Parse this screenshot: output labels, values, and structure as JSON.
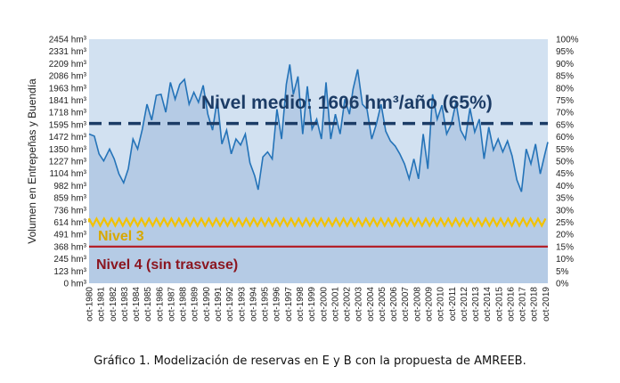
{
  "chart_data": {
    "type": "area",
    "ylabel": "Volumen en Entrepeñas y Buendía",
    "y_ticks_left": [
      "0 hm³",
      "123 hm³",
      "245 hm³",
      "368 hm³",
      "491 hm³",
      "614 hm³",
      "736 hm³",
      "859 hm³",
      "982 hm³",
      "1104 hm³",
      "1227 hm³",
      "1350 hm³",
      "1472 hm³",
      "1595 hm³",
      "1718 hm³",
      "1841 hm³",
      "1963 hm³",
      "2086 hm³",
      "2209 hm³",
      "2331 hm³",
      "2454 hm³"
    ],
    "y_ticks_right": [
      "0%",
      "5%",
      "10%",
      "15%",
      "20%",
      "25%",
      "30%",
      "35%",
      "40%",
      "45%",
      "50%",
      "55%",
      "60%",
      "65%",
      "70%",
      "75%",
      "80%",
      "85%",
      "90%",
      "95%",
      "100%"
    ],
    "ylim": [
      0,
      2454
    ],
    "x_ticks": [
      "oct-1980",
      "oct-1981",
      "oct-1982",
      "oct-1983",
      "oct-1984",
      "oct-1985",
      "oct-1986",
      "oct-1987",
      "oct-1988",
      "oct-1989",
      "oct-1990",
      "oct-1991",
      "oct-1992",
      "oct-1993",
      "oct-1994",
      "oct-1995",
      "oct-1996",
      "oct-1997",
      "oct-1998",
      "oct-1999",
      "oct-2000",
      "oct-2001",
      "oct-2002",
      "oct-2003",
      "oct-2004",
      "oct-2005",
      "oct-2006",
      "oct-2007",
      "oct-2008",
      "oct-2009",
      "oct-2010",
      "oct-2011",
      "oct-2012",
      "oct-2013",
      "oct-2014",
      "oct-2015",
      "oct-2016",
      "oct-2017",
      "oct-2018",
      "oct-2019"
    ],
    "series": [
      {
        "kind": "volume",
        "x": [
          1980.75,
          1981.2,
          1981.6,
          1982.0,
          1982.5,
          1982.9,
          1983.3,
          1983.7,
          1984.1,
          1984.5,
          1984.9,
          1985.3,
          1985.7,
          1986.1,
          1986.5,
          1986.9,
          1987.3,
          1987.7,
          1988.1,
          1988.5,
          1988.9,
          1989.3,
          1989.7,
          1990.1,
          1990.5,
          1990.9,
          1991.3,
          1991.7,
          1992.1,
          1992.5,
          1992.9,
          1993.3,
          1993.7,
          1994.1,
          1994.5,
          1994.9,
          1995.2,
          1995.6,
          1996.0,
          1996.4,
          1996.8,
          1997.2,
          1997.6,
          1997.9,
          1998.2,
          1998.6,
          1999.0,
          1999.4,
          1999.8,
          2000.2,
          2000.6,
          2001.0,
          2001.4,
          2001.8,
          2002.2,
          2002.6,
          2003.0,
          2003.3,
          2003.7,
          2004.1,
          2004.5,
          2004.9,
          2005.3,
          2005.7,
          2006.1,
          2006.5,
          2006.9,
          2007.3,
          2007.7,
          2008.1,
          2008.5,
          2008.9,
          2009.3,
          2009.7,
          2010.1,
          2010.5,
          2010.9,
          2011.3,
          2011.7,
          2012.1,
          2012.5,
          2012.9,
          2013.3,
          2013.7,
          2014.1,
          2014.5,
          2014.9,
          2015.3,
          2015.7,
          2016.1,
          2016.5,
          2016.9,
          2017.3,
          2017.7,
          2018.1,
          2018.5,
          2018.9,
          2019.3,
          2019.7,
          2019.95
        ],
        "y": [
          1500,
          1480,
          1300,
          1230,
          1350,
          1250,
          1100,
          1010,
          1150,
          1450,
          1350,
          1550,
          1800,
          1640,
          1890,
          1900,
          1720,
          2020,
          1850,
          2000,
          2050,
          1800,
          1920,
          1820,
          1990,
          1700,
          1540,
          1850,
          1400,
          1540,
          1300,
          1450,
          1390,
          1500,
          1210,
          1080,
          940,
          1270,
          1320,
          1250,
          1750,
          1450,
          2000,
          2200,
          1900,
          2080,
          1500,
          1980,
          1550,
          1650,
          1450,
          2020,
          1450,
          1700,
          1500,
          1850,
          1700,
          1950,
          2150,
          1800,
          1750,
          1450,
          1600,
          1800,
          1530,
          1430,
          1380,
          1300,
          1200,
          1050,
          1250,
          1050,
          1500,
          1150,
          1900,
          1650,
          1790,
          1500,
          1600,
          1820,
          1540,
          1450,
          1760,
          1520,
          1650,
          1250,
          1570,
          1340,
          1450,
          1320,
          1430,
          1280,
          1040,
          920,
          1350,
          1200,
          1400,
          1100,
          1300,
          1420
        ]
      }
    ],
    "annotations": {
      "nivel_medio": {
        "label": "Nivel medio: 1606 hm³/año (65%)",
        "value": 1606
      },
      "nivel_3": {
        "label": "Nivel 3",
        "value": 614
      },
      "nivel_4": {
        "label": "Nivel 4 (sin trasvase)",
        "value": 368
      }
    },
    "grid": false,
    "legend": "none"
  },
  "caption": "Gráfico 1. Modelización de reservas en E y B con la propuesta de AMREEB.",
  "colors": {
    "area_fill": "#b5cbe5",
    "line": "#2473b8",
    "mean_line": "#1c3c66",
    "nivel3": "#f2c200",
    "nivel4": "#b3202a",
    "plot_bg": "#d2e1f1"
  }
}
